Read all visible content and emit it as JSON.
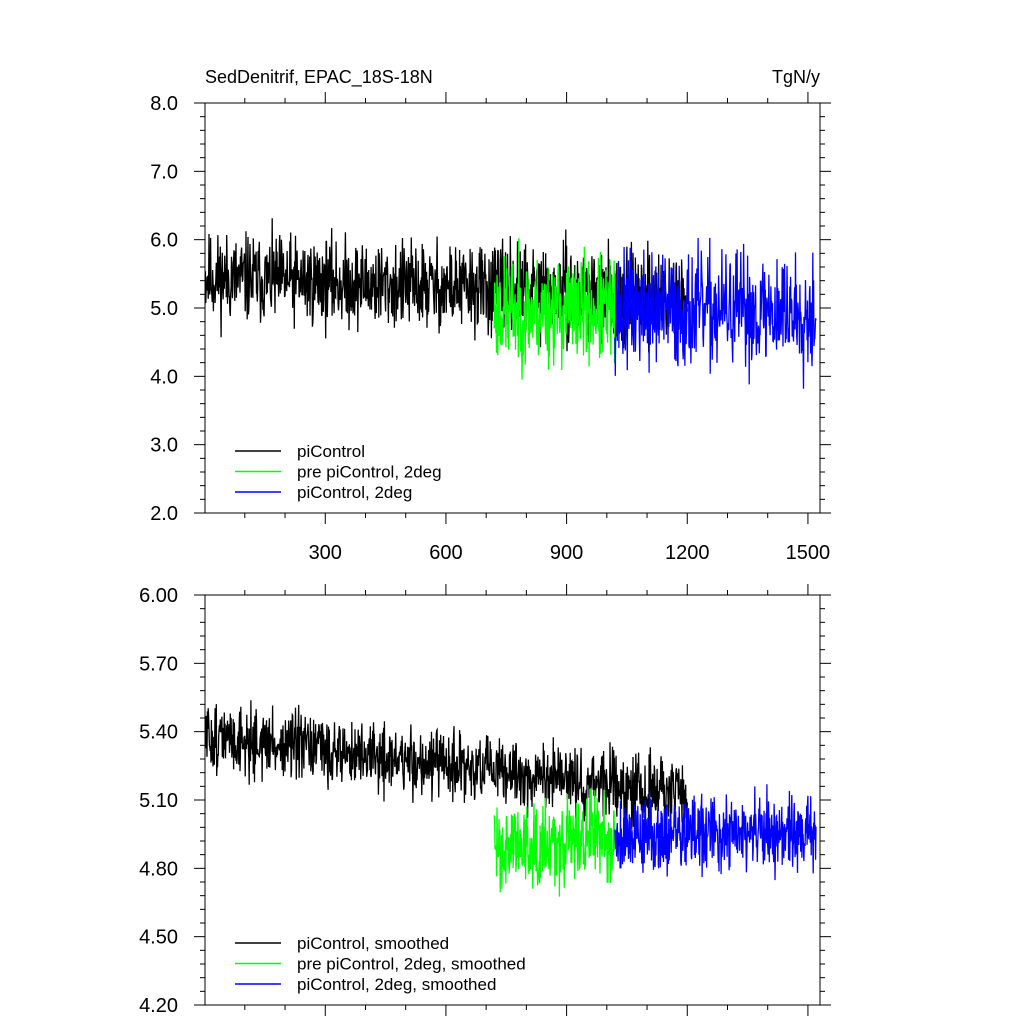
{
  "figure": {
    "title_left": "SedDenitrif, EPAC_18S-18N",
    "title_right": "TgN/y"
  },
  "chart_data": [
    {
      "type": "line",
      "xlim": [
        1,
        1530
      ],
      "ylim": [
        2.0,
        8.0
      ],
      "x_ticks": [
        300,
        600,
        900,
        1200,
        1500
      ],
      "x_tick_labels": [
        "300",
        "600",
        "900",
        "1200",
        "1500"
      ],
      "y_ticks": [
        2.0,
        3.0,
        4.0,
        5.0,
        6.0,
        7.0,
        8.0
      ],
      "y_tick_labels": [
        "2.0",
        "3.0",
        "4.0",
        "5.0",
        "6.0",
        "7.0",
        "8.0"
      ],
      "legend_position": "bottom-left",
      "series": [
        {
          "name": "piControl",
          "color": "#000000",
          "x_range": [
            1,
            1200
          ],
          "mean_start": 5.45,
          "mean_end": 5.15,
          "amplitude": 0.95,
          "seed": 11
        },
        {
          "name": "pre piControl, 2deg",
          "color": "#00ff00",
          "x_range": [
            720,
            1020
          ],
          "mean_start": 4.95,
          "mean_end": 4.95,
          "amplitude": 1.15,
          "seed": 23
        },
        {
          "name": "piControl, 2deg",
          "color": "#0000ff",
          "x_range": [
            1020,
            1520
          ],
          "mean_start": 4.95,
          "mean_end": 4.95,
          "amplitude": 1.25,
          "seed": 37
        }
      ]
    },
    {
      "type": "line",
      "xlim": [
        1,
        1530
      ],
      "ylim": [
        4.2,
        6.0
      ],
      "x_ticks": [
        300,
        600,
        900,
        1200,
        1500
      ],
      "x_tick_labels": [],
      "y_ticks": [
        4.2,
        4.5,
        4.8,
        5.1,
        5.4,
        5.7,
        6.0
      ],
      "y_tick_labels": [
        "4.20",
        "4.50",
        "4.80",
        "5.10",
        "5.40",
        "5.70",
        "6.00"
      ],
      "legend_position": "bottom-left",
      "series": [
        {
          "name": "piControl, smoothed",
          "color": "#000000",
          "x_range": [
            1,
            1200
          ],
          "mean_start": 5.38,
          "mean_end": 5.12,
          "amplitude": 0.22,
          "seed": 51
        },
        {
          "name": "pre piControl, 2deg, smoothed",
          "color": "#00ff00",
          "x_range": [
            720,
            1020
          ],
          "mean_start": 4.9,
          "mean_end": 4.95,
          "amplitude": 0.28,
          "seed": 63
        },
        {
          "name": "piControl, 2deg, smoothed",
          "color": "#0000ff",
          "x_range": [
            1020,
            1520
          ],
          "mean_start": 4.95,
          "mean_end": 4.95,
          "amplitude": 0.25,
          "seed": 79
        }
      ]
    }
  ]
}
